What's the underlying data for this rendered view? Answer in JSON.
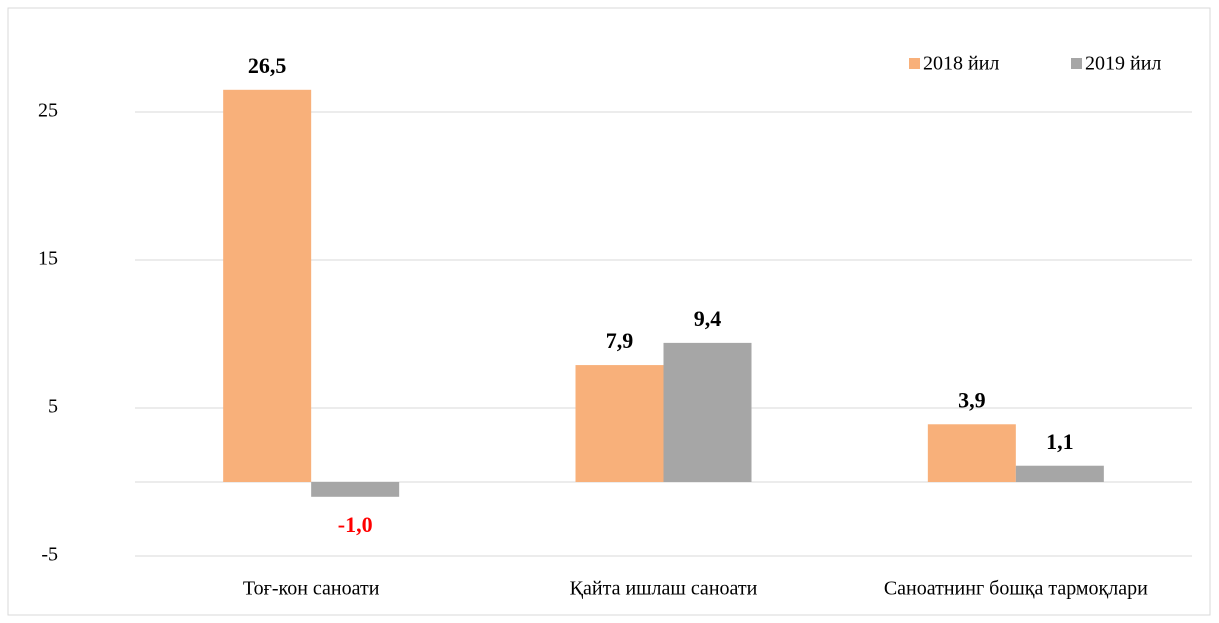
{
  "chart_data": {
    "type": "bar",
    "categories": [
      "Тоғ-кон саноати",
      "Қайта ишлаш саноати",
      "Саноатнинг бошқа тармоқлари"
    ],
    "series": [
      {
        "name": "2018 йил",
        "color": "#f8b07a",
        "values": [
          26.5,
          7.9,
          3.9
        ],
        "value_labels": [
          "26,5",
          "7,9",
          "3,9"
        ]
      },
      {
        "name": "2019 йил",
        "color": "#a6a6a6",
        "values": [
          -1.0,
          9.4,
          1.1
        ],
        "value_labels": [
          "-1,0",
          "9,4",
          "1,1"
        ]
      }
    ],
    "negative_label_color": "#ff0000",
    "ylim": [
      -5,
      30
    ],
    "yticks": [
      -5,
      5,
      15,
      25
    ],
    "grid": true,
    "legend": "top-right"
  }
}
